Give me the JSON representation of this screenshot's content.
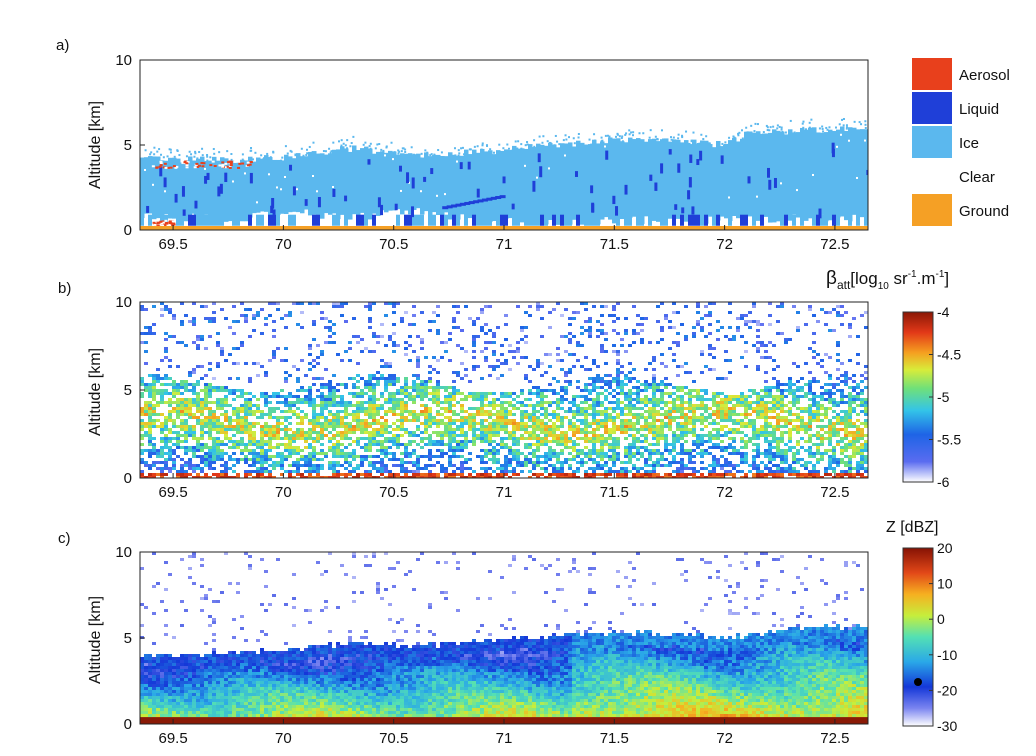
{
  "figure": {
    "panels": [
      {
        "id": "a",
        "label": "a)",
        "type": "heatmap-categorical",
        "ylabel": "Altitude [km]",
        "ylim": [
          0,
          10
        ],
        "yticks": [
          "0",
          "5",
          "10"
        ],
        "xlim": [
          69.35,
          72.65
        ],
        "xticks": [
          "69.5",
          "70",
          "70.5",
          "71",
          "71.5",
          "72",
          "72.5"
        ],
        "legend": {
          "placement": "right",
          "entries": [
            {
              "label": "Aerosol",
              "color": "#e8401c"
            },
            {
              "label": "Liquid",
              "color": "#1f3fd8"
            },
            {
              "label": "Ice",
              "color": "#5bb8ee"
            },
            {
              "label": "Clear",
              "color": "#ffffff"
            },
            {
              "label": "Ground",
              "color": "#f5a025"
            }
          ]
        }
      },
      {
        "id": "b",
        "label": "b)",
        "type": "heatmap",
        "ylabel": "Altitude [km]",
        "ylim": [
          0,
          10
        ],
        "yticks": [
          "0",
          "5",
          "10"
        ],
        "xlim": [
          69.35,
          72.65
        ],
        "xticks": [
          "69.5",
          "70",
          "70.5",
          "71",
          "71.5",
          "72",
          "72.5"
        ],
        "colorbar": {
          "title_main": "β",
          "title_sub": "att",
          "title_rest": "[log",
          "title_base": "10",
          "title_units_1": " sr",
          "title_exp_1": "-1",
          "title_units_2": ".m",
          "title_exp_2": "-1",
          "title_close": "]",
          "range": [
            -6,
            -4
          ],
          "ticks": [
            "-4",
            "-4.5",
            "-5",
            "-5.5",
            "-6"
          ],
          "tick_values": [
            -4,
            -4.5,
            -5,
            -5.5,
            -6
          ]
        }
      },
      {
        "id": "c",
        "label": "c)",
        "type": "heatmap",
        "ylabel": "Altitude [km]",
        "ylim": [
          0,
          10
        ],
        "yticks": [
          "0",
          "5",
          "10"
        ],
        "xlim": [
          69.35,
          72.65
        ],
        "xticks": [
          "69.5",
          "70",
          "70.5",
          "71",
          "71.5",
          "72",
          "72.5"
        ],
        "colorbar": {
          "title": "Z [dBZ]",
          "range": [
            -30,
            20
          ],
          "ticks": [
            "20",
            "10",
            "0",
            "-10",
            "-20",
            "-30"
          ],
          "tick_values": [
            20,
            10,
            0,
            -10,
            -20,
            -30
          ]
        }
      }
    ]
  },
  "chart_data": [
    {
      "type": "heatmap",
      "panel": "a",
      "xlim": [
        69.35,
        72.65
      ],
      "ylim": [
        0,
        10
      ],
      "ylabel": "Altitude [km]",
      "categories": [
        "Aerosol",
        "Liquid",
        "Ice",
        "Clear",
        "Ground"
      ],
      "ice_top_km": [
        [
          69.4,
          4.2
        ],
        [
          69.8,
          4.1
        ],
        [
          70.0,
          4.3
        ],
        [
          70.3,
          4.8
        ],
        [
          70.6,
          4.4
        ],
        [
          70.9,
          4.6
        ],
        [
          71.2,
          5.0
        ],
        [
          71.5,
          5.3
        ],
        [
          71.8,
          5.2
        ],
        [
          72.0,
          5.0
        ],
        [
          72.1,
          5.7
        ],
        [
          72.4,
          5.9
        ],
        [
          72.65,
          6.0
        ]
      ],
      "ice_base_km": [
        [
          69.4,
          0.7
        ],
        [
          69.8,
          0.6
        ],
        [
          70.0,
          1.0
        ],
        [
          70.3,
          0.6
        ],
        [
          70.6,
          1.1
        ],
        [
          70.9,
          0.4
        ],
        [
          71.2,
          0.4
        ],
        [
          71.5,
          0.5
        ],
        [
          71.8,
          0.5
        ],
        [
          72.0,
          0.5
        ],
        [
          72.3,
          0.6
        ],
        [
          72.65,
          0.6
        ]
      ],
      "aerosol_regions": [
        {
          "x": [
            69.4,
            69.85
          ],
          "y": [
            3.7,
            4.1
          ]
        },
        {
          "x": [
            69.4,
            69.5
          ],
          "y": [
            0.3,
            0.6
          ]
        }
      ],
      "ground_km": [
        0,
        0.25
      ]
    },
    {
      "type": "heatmap",
      "panel": "b",
      "variable": "attenuated backscatter",
      "xlim": [
        69.35,
        72.65
      ],
      "ylim": [
        0,
        10
      ],
      "ylabel": "Altitude [km]",
      "color_range": [
        -6,
        -4
      ],
      "cloud_band_km": [
        0.3,
        5.5
      ],
      "peak_layer_km": [
        2.5,
        4.0
      ],
      "sample_points": [
        [
          69.5,
          3.0,
          -4.9
        ],
        [
          69.8,
          2.6,
          -5.0
        ],
        [
          70.2,
          2.0,
          -5.3
        ],
        [
          70.5,
          3.6,
          -4.7
        ],
        [
          70.8,
          3.3,
          -4.9
        ],
        [
          71.2,
          3.8,
          -4.7
        ],
        [
          71.6,
          3.2,
          -4.8
        ],
        [
          72.0,
          3.5,
          -4.6
        ],
        [
          72.4,
          4.3,
          -4.8
        ],
        [
          70.0,
          0.2,
          -4.3
        ],
        [
          72.6,
          0.2,
          -4.5
        ],
        [
          71.0,
          8.5,
          -5.7
        ]
      ]
    },
    {
      "type": "heatmap",
      "panel": "c",
      "variable": "radar reflectivity",
      "xlim": [
        69.35,
        72.65
      ],
      "ylim": [
        0,
        10
      ],
      "ylabel": "Altitude [km]",
      "color_range": [
        -30,
        20
      ],
      "echo_top_km": [
        [
          69.4,
          4.1
        ],
        [
          69.8,
          4.2
        ],
        [
          70.0,
          4.4
        ],
        [
          70.3,
          4.8
        ],
        [
          70.6,
          4.6
        ],
        [
          70.9,
          4.9
        ],
        [
          71.2,
          5.2
        ],
        [
          71.5,
          5.4
        ],
        [
          71.8,
          5.3
        ],
        [
          72.0,
          5.1
        ],
        [
          72.3,
          5.6
        ],
        [
          72.65,
          5.8
        ]
      ],
      "sample_points": [
        [
          69.5,
          3.5,
          -18
        ],
        [
          69.6,
          1.2,
          -5
        ],
        [
          70.1,
          0.8,
          -20
        ],
        [
          70.5,
          2.5,
          -8
        ],
        [
          70.9,
          1.5,
          -2
        ],
        [
          71.2,
          2.8,
          -12
        ],
        [
          71.6,
          1.2,
          4
        ],
        [
          72.0,
          1.5,
          3
        ],
        [
          72.4,
          1.3,
          5
        ],
        [
          71.0,
          0.3,
          18
        ],
        [
          71.0,
          7.5,
          -28
        ]
      ],
      "surface_layer_km": [
        0,
        0.4
      ]
    }
  ]
}
